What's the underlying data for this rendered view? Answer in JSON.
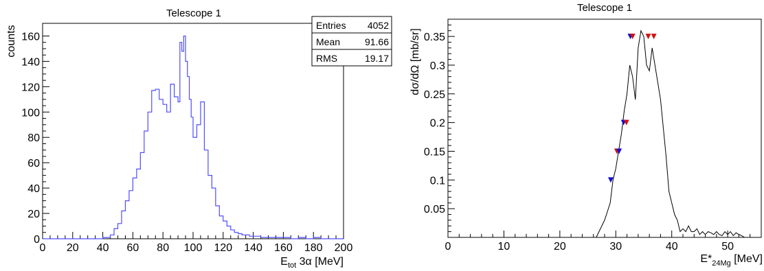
{
  "chart_data": [
    {
      "type": "histogram",
      "title": "Telescope 1",
      "ylabel": "counts",
      "xlabel": {
        "main": "E",
        "sub": "tot",
        "rest": " 3α [MeV]"
      },
      "xlim": [
        0,
        200
      ],
      "ylim": [
        0,
        170
      ],
      "xticks": [
        0,
        20,
        40,
        60,
        80,
        100,
        120,
        140,
        160,
        180,
        200
      ],
      "yticks": [
        0,
        20,
        40,
        60,
        80,
        100,
        120,
        140,
        160
      ],
      "bin_width": 1.25,
      "line_color": "#4d4dff",
      "stats": [
        {
          "label": "Entries",
          "value": "4052"
        },
        {
          "label": "Mean",
          "value": "91.66"
        },
        {
          "label": "RMS",
          "value": "19.17"
        }
      ],
      "x": [
        0,
        40,
        45,
        47.5,
        50,
        52.5,
        55,
        57.5,
        60,
        62.5,
        65,
        67.5,
        70,
        72.5,
        75,
        77.5,
        80,
        82.5,
        85,
        87.5,
        90,
        91.25,
        92.5,
        93.75,
        95,
        96.25,
        97.5,
        98.75,
        100,
        102.5,
        105,
        107.5,
        110,
        112.5,
        115,
        117.5,
        120,
        122.5,
        125,
        127.5,
        130,
        132.5,
        135,
        137.5,
        140,
        145,
        150,
        155,
        160,
        165,
        170,
        175,
        180,
        185,
        190,
        195
      ],
      "values": [
        0,
        1,
        3,
        8,
        12,
        22,
        30,
        38,
        48,
        55,
        68,
        85,
        100,
        117,
        118,
        110,
        106,
        100,
        122,
        112,
        108,
        155,
        148,
        160,
        140,
        128,
        110,
        96,
        80,
        90,
        108,
        70,
        50,
        40,
        26,
        18,
        14,
        10,
        7,
        5,
        4,
        3,
        3,
        2,
        2,
        1,
        1,
        1,
        1,
        0,
        1,
        0,
        1,
        0,
        0,
        0
      ]
    },
    {
      "type": "line",
      "title": "Telescope 1",
      "ylabel": "dσ/dΩ [mb/sr]",
      "xlabel": {
        "main": "E*",
        "sub": "24Mg",
        "rest": " [MeV]"
      },
      "xlim": [
        0,
        56
      ],
      "ylim": [
        0,
        0.38
      ],
      "xticks": [
        0,
        10,
        20,
        30,
        40,
        50
      ],
      "yticks": [
        0.05,
        0.1,
        0.15,
        0.2,
        0.25,
        0.3,
        0.35
      ],
      "line_color": "#000000",
      "x": [
        26.5,
        27,
        27.5,
        28,
        28.5,
        29,
        29.5,
        30,
        30.5,
        31,
        31.5,
        32,
        32.5,
        33,
        33.5,
        34,
        34.5,
        35,
        35.5,
        36,
        36.5,
        37,
        37.5,
        38,
        38.5,
        39,
        39.5,
        40,
        40.5,
        41,
        41.5,
        42,
        42.5,
        43,
        43.5,
        44,
        44.5,
        45,
        45.5,
        46,
        46.5,
        47,
        47.5,
        48,
        48.5,
        49,
        49.5,
        50,
        50.5,
        51,
        51.5,
        52,
        52.5,
        53
      ],
      "values": [
        0,
        0.01,
        0.02,
        0.03,
        0.045,
        0.06,
        0.1,
        0.12,
        0.15,
        0.18,
        0.22,
        0.25,
        0.3,
        0.28,
        0.24,
        0.33,
        0.36,
        0.35,
        0.3,
        0.29,
        0.33,
        0.3,
        0.27,
        0.24,
        0.19,
        0.14,
        0.08,
        0.06,
        0.04,
        0.03,
        0.01,
        0.015,
        0.01,
        0.02,
        0.01,
        0.01,
        0.015,
        0.005,
        0.01,
        0.005,
        0.01,
        0.008,
        0.005,
        0.01,
        0.005,
        0.003,
        0.01,
        0.005,
        0.01,
        0.003,
        0.008,
        0.005,
        0.003,
        0
      ],
      "markers": [
        {
          "x": 29.1,
          "y": 0.1,
          "color": "#1010d0"
        },
        {
          "x": 30.2,
          "y": 0.15,
          "color": "#d01010"
        },
        {
          "x": 30.6,
          "y": 0.15,
          "color": "#1010d0"
        },
        {
          "x": 31.4,
          "y": 0.2,
          "color": "#1010d0"
        },
        {
          "x": 31.9,
          "y": 0.2,
          "color": "#d01010"
        },
        {
          "x": 32.6,
          "y": 0.35,
          "color": "#1010d0"
        },
        {
          "x": 33.0,
          "y": 0.35,
          "color": "#d01010"
        },
        {
          "x": 35.8,
          "y": 0.35,
          "color": "#d01010"
        },
        {
          "x": 36.8,
          "y": 0.35,
          "color": "#d01010"
        }
      ]
    }
  ]
}
